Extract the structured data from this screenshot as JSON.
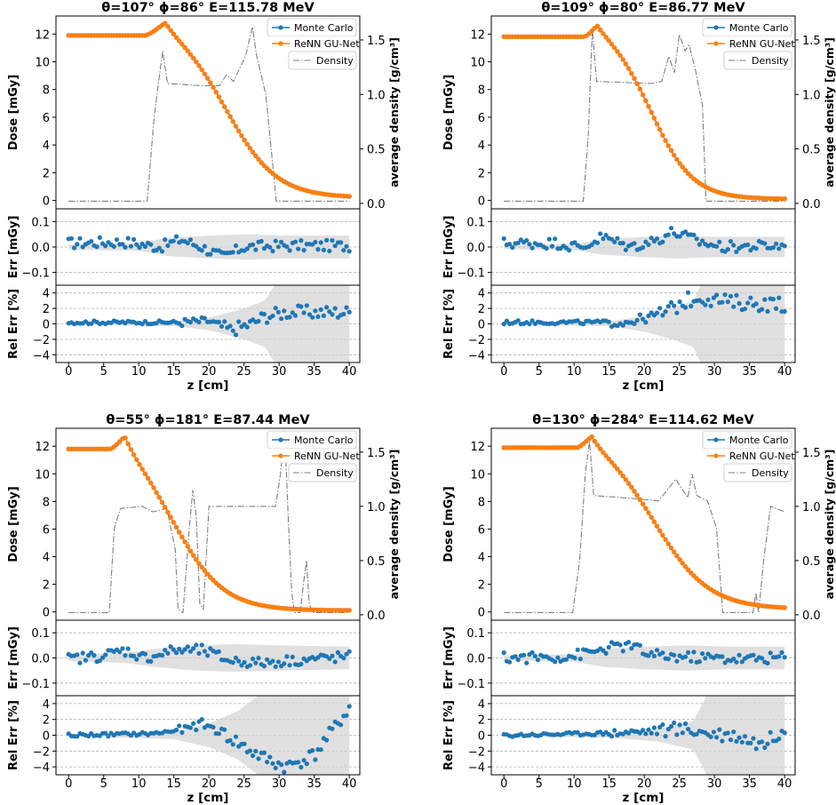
{
  "chart_data": [
    {
      "type": "line",
      "title": "θ=107°   ϕ=86°   E=115.78 MeV",
      "xlabel": "z [cm]",
      "ylabel_dose": "Dose [mGy]",
      "ylabel_density": "average density [g/cm³]",
      "ylabel_err": "Err [mGy]",
      "ylabel_rel": "Rel Err [%]",
      "legend": [
        "Monte Carlo",
        "ReNN GU-Net",
        "Density"
      ],
      "dose_ylim": [
        -0.6,
        13.3
      ],
      "dose_yticks": [
        "0",
        "2",
        "4",
        "6",
        "8",
        "10",
        "12"
      ],
      "density_ylim": [
        -0.05,
        1.72
      ],
      "density_yticks": [
        "0.0",
        "0.5",
        "1.0",
        "1.5"
      ],
      "err_ylim": [
        -0.15,
        0.15
      ],
      "err_yticks": [
        "−0.1",
        "0.0",
        "0.1"
      ],
      "rel_ylim": [
        -5,
        5
      ],
      "rel_yticks": [
        "−4",
        "−2",
        "0",
        "2",
        "4"
      ],
      "xlim": [
        -1.8,
        41.5
      ],
      "xticks": [
        "0",
        "5",
        "10",
        "15",
        "20",
        "25",
        "30",
        "35",
        "40"
      ],
      "dose_profile": {
        "plateau": 11.9,
        "plateau_end": 11.0,
        "peak_z": 13.8,
        "peak_value": 12.8,
        "fall_center": 22.5,
        "fall_width": 3.6,
        "tail": 0.2
      },
      "density_profile": [
        [
          0,
          0.02
        ],
        [
          11.2,
          0.02
        ],
        [
          12.2,
          0.8
        ],
        [
          13.4,
          1.4
        ],
        [
          14.1,
          1.1
        ],
        [
          19,
          1.08
        ],
        [
          21.5,
          1.08
        ],
        [
          22.5,
          1.18
        ],
        [
          23.5,
          1.12
        ],
        [
          25.2,
          1.35
        ],
        [
          26.2,
          1.62
        ],
        [
          26.8,
          1.35
        ],
        [
          27.3,
          1.22
        ],
        [
          28.1,
          1.0
        ],
        [
          29.6,
          0.02
        ],
        [
          40,
          0.02
        ]
      ],
      "err_band": [
        [
          0,
          0.01
        ],
        [
          10,
          0.015
        ],
        [
          14,
          0.035
        ],
        [
          20,
          0.045
        ],
        [
          26,
          0.05
        ],
        [
          30,
          0.045
        ],
        [
          40,
          0.045
        ]
      ],
      "err_scatter": {
        "bias": [
          [
            0,
            0.015
          ],
          [
            8,
            0.02
          ],
          [
            13,
            0.0
          ],
          [
            16,
            0.03
          ],
          [
            19,
            0.0
          ],
          [
            22,
            -0.04
          ],
          [
            25,
            0.0
          ],
          [
            30,
            0.005
          ],
          [
            40,
            0.005
          ]
        ],
        "noise": 0.022
      },
      "rel_band": [
        [
          0,
          0.1
        ],
        [
          15,
          0.3
        ],
        [
          20,
          0.8
        ],
        [
          25,
          2.0
        ],
        [
          28,
          3.0
        ],
        [
          30,
          6.0
        ],
        [
          40,
          6.0
        ]
      ],
      "rel_scatter": {
        "bias": [
          [
            0,
            0.2
          ],
          [
            16,
            0.2
          ],
          [
            20,
            0.4
          ],
          [
            23,
            -0.8
          ],
          [
            26,
            0.0
          ],
          [
            28,
            1.0
          ],
          [
            31,
            1.5
          ],
          [
            40,
            1.5
          ]
        ],
        "noise": 0.9
      }
    },
    {
      "type": "line",
      "title": "θ=109°   ϕ=80°   E=86.77 MeV",
      "xlabel": "z [cm]",
      "ylabel_dose": "Dose [mGy]",
      "ylabel_density": "average density [g/cm³]",
      "ylabel_err": "Err [mGy]",
      "ylabel_rel": "Rel Err [%]",
      "legend": [
        "Monte Carlo",
        "ReNN GU-Net",
        "Density"
      ],
      "dose_ylim": [
        -0.6,
        13.3
      ],
      "dose_yticks": [
        "0",
        "2",
        "4",
        "6",
        "8",
        "10",
        "12"
      ],
      "density_ylim": [
        -0.05,
        1.72
      ],
      "density_yticks": [
        "0.0",
        "0.5",
        "1.0",
        "1.5"
      ],
      "err_ylim": [
        -0.15,
        0.15
      ],
      "err_yticks": [
        "−0.1",
        "0.0",
        "0.1"
      ],
      "rel_ylim": [
        -5,
        5
      ],
      "rel_yticks": [
        "−4",
        "−2",
        "0",
        "2",
        "4"
      ],
      "xlim": [
        -1.8,
        41.5
      ],
      "xticks": [
        "0",
        "5",
        "10",
        "15",
        "20",
        "25",
        "30",
        "35",
        "40"
      ],
      "dose_profile": {
        "plateau": 11.8,
        "plateau_end": 11.5,
        "peak_z": 13.3,
        "peak_value": 12.6,
        "fall_center": 21.0,
        "fall_width": 3.0,
        "tail": 0.1
      },
      "density_profile": [
        [
          0,
          0.02
        ],
        [
          11.3,
          0.02
        ],
        [
          12.0,
          0.6
        ],
        [
          12.6,
          1.6
        ],
        [
          13.2,
          1.12
        ],
        [
          21,
          1.1
        ],
        [
          22.5,
          1.12
        ],
        [
          23.5,
          1.35
        ],
        [
          24.3,
          1.2
        ],
        [
          25.0,
          1.55
        ],
        [
          25.8,
          1.4
        ],
        [
          26.4,
          1.45
        ],
        [
          27.2,
          1.25
        ],
        [
          28.3,
          0.9
        ],
        [
          28.8,
          0.02
        ],
        [
          40,
          0.02
        ]
      ],
      "err_band": [
        [
          0,
          0.008
        ],
        [
          10,
          0.012
        ],
        [
          14,
          0.03
        ],
        [
          20,
          0.04
        ],
        [
          25,
          0.045
        ],
        [
          30,
          0.04
        ],
        [
          40,
          0.04
        ]
      ],
      "err_scatter": {
        "bias": [
          [
            0,
            0.015
          ],
          [
            8,
            0.015
          ],
          [
            11,
            -0.005
          ],
          [
            14,
            0.04
          ],
          [
            18,
            0.0
          ],
          [
            22,
            0.03
          ],
          [
            24,
            0.06
          ],
          [
            28,
            0.02
          ],
          [
            31,
            0.0
          ],
          [
            40,
            0.005
          ]
        ],
        "noise": 0.022
      },
      "rel_band": [
        [
          0,
          0.1
        ],
        [
          15,
          0.3
        ],
        [
          20,
          1.0
        ],
        [
          24,
          2.0
        ],
        [
          27,
          3.0
        ],
        [
          28.5,
          6.0
        ],
        [
          40,
          6.0
        ]
      ],
      "rel_scatter": {
        "bias": [
          [
            0,
            0.2
          ],
          [
            17,
            0.2
          ],
          [
            20,
            0.7
          ],
          [
            23,
            1.5
          ],
          [
            26,
            3.0
          ],
          [
            28,
            3.5
          ],
          [
            32,
            2.8
          ],
          [
            40,
            2.5
          ]
        ],
        "noise": 1.0
      }
    },
    {
      "type": "line",
      "title": "θ=55°   ϕ=181°   E=87.44 MeV",
      "xlabel": "z [cm]",
      "ylabel_dose": "Dose [mGy]",
      "ylabel_density": "average density [g/cm³]",
      "ylabel_err": "Err [mGy]",
      "ylabel_rel": "Rel Err [%]",
      "legend": [
        "Monte Carlo",
        "ReNN GU-Net",
        "Density"
      ],
      "dose_ylim": [
        -0.6,
        13.3
      ],
      "dose_yticks": [
        "0",
        "2",
        "4",
        "6",
        "8",
        "10",
        "12"
      ],
      "density_ylim": [
        -0.05,
        1.72
      ],
      "density_yticks": [
        "0.0",
        "0.5",
        "1.0",
        "1.5"
      ],
      "err_ylim": [
        -0.15,
        0.15
      ],
      "err_yticks": [
        "−0.1",
        "0.0",
        "0.1"
      ],
      "rel_ylim": [
        -5,
        5
      ],
      "rel_yticks": [
        "−4",
        "−2",
        "0",
        "2",
        "4"
      ],
      "xlim": [
        -1.8,
        41.5
      ],
      "xticks": [
        "0",
        "5",
        "10",
        "15",
        "20",
        "25",
        "30",
        "35",
        "40"
      ],
      "dose_profile": {
        "plateau": 11.8,
        "plateau_end": 6.0,
        "peak_z": 8.0,
        "peak_value": 12.7,
        "fall_center": 15.0,
        "fall_width": 3.6,
        "tail": 0.1
      },
      "density_profile": [
        [
          0,
          0.02
        ],
        [
          5.8,
          0.02
        ],
        [
          6.5,
          0.8
        ],
        [
          7.4,
          0.98
        ],
        [
          10.5,
          1.0
        ],
        [
          12,
          0.95
        ],
        [
          14.0,
          0.98
        ],
        [
          15.2,
          0.6
        ],
        [
          15.6,
          0.05
        ],
        [
          16.3,
          0.02
        ],
        [
          17.2,
          0.8
        ],
        [
          17.7,
          1.15
        ],
        [
          18.2,
          0.9
        ],
        [
          18.7,
          0.1
        ],
        [
          19.2,
          0.05
        ],
        [
          20.0,
          1.0
        ],
        [
          23,
          1.0
        ],
        [
          27,
          1.0
        ],
        [
          29.5,
          1.0
        ],
        [
          30.2,
          1.3
        ],
        [
          30.8,
          1.7
        ],
        [
          31.3,
          0.9
        ],
        [
          31.8,
          0.2
        ],
        [
          32.2,
          0.02
        ],
        [
          33.0,
          0.02
        ],
        [
          33.5,
          0.3
        ],
        [
          33.9,
          0.5
        ],
        [
          34.3,
          0.1
        ],
        [
          34.8,
          0.02
        ],
        [
          40,
          0.02
        ]
      ],
      "err_band": [
        [
          0,
          0.012
        ],
        [
          8,
          0.02
        ],
        [
          12,
          0.035
        ],
        [
          18,
          0.05
        ],
        [
          24,
          0.055
        ],
        [
          30,
          0.05
        ],
        [
          40,
          0.045
        ]
      ],
      "err_scatter": {
        "bias": [
          [
            0,
            -0.005
          ],
          [
            5,
            0.01
          ],
          [
            8,
            0.03
          ],
          [
            11,
            0.0
          ],
          [
            15,
            0.03
          ],
          [
            19,
            0.03
          ],
          [
            23,
            -0.01
          ],
          [
            27,
            -0.02
          ],
          [
            32,
            -0.01
          ],
          [
            40,
            0.005
          ]
        ],
        "noise": 0.022
      },
      "rel_band": [
        [
          0,
          0.1
        ],
        [
          15,
          0.5
        ],
        [
          20,
          1.5
        ],
        [
          24,
          3.0
        ],
        [
          27,
          5.0
        ],
        [
          28,
          6.0
        ],
        [
          40,
          6.0
        ]
      ],
      "rel_scatter": {
        "bias": [
          [
            0,
            0.0
          ],
          [
            12,
            0.2
          ],
          [
            17,
            0.8
          ],
          [
            19,
            1.5
          ],
          [
            22,
            0.3
          ],
          [
            25,
            -1.5
          ],
          [
            28,
            -3.0
          ],
          [
            31,
            -4.0
          ],
          [
            35,
            -2.5
          ],
          [
            38,
            1.0
          ],
          [
            40,
            3.5
          ]
        ],
        "noise": 0.9
      }
    },
    {
      "type": "line",
      "title": "θ=130°   ϕ=284°   E=114.62 MeV",
      "xlabel": "z [cm]",
      "ylabel_dose": "Dose [mGy]",
      "ylabel_density": "average density [g/cm³]",
      "ylabel_err": "Err [mGy]",
      "ylabel_rel": "Rel Err [%]",
      "legend": [
        "Monte Carlo",
        "ReNN GU-Net",
        "Density"
      ],
      "dose_ylim": [
        -0.6,
        13.3
      ],
      "dose_yticks": [
        "0",
        "2",
        "4",
        "6",
        "8",
        "10",
        "12"
      ],
      "density_ylim": [
        -0.05,
        1.72
      ],
      "density_yticks": [
        "0.0",
        "0.5",
        "1.0",
        "1.5"
      ],
      "err_ylim": [
        -0.15,
        0.15
      ],
      "err_yticks": [
        "−0.1",
        "0.0",
        "0.1"
      ],
      "rel_ylim": [
        -5,
        5
      ],
      "rel_yticks": [
        "−4",
        "−2",
        "0",
        "2",
        "4"
      ],
      "xlim": [
        -1.8,
        41.5
      ],
      "xticks": [
        "0",
        "5",
        "10",
        "15",
        "20",
        "25",
        "30",
        "35",
        "40"
      ],
      "dose_profile": {
        "plateau": 11.9,
        "plateau_end": 10.5,
        "peak_z": 12.5,
        "peak_value": 12.7,
        "fall_center": 21.5,
        "fall_width": 3.9,
        "tail": 0.2
      },
      "density_profile": [
        [
          0,
          0.02
        ],
        [
          9.8,
          0.02
        ],
        [
          10.8,
          0.5
        ],
        [
          11.6,
          1.3
        ],
        [
          12.2,
          1.6
        ],
        [
          12.8,
          1.1
        ],
        [
          19,
          1.07
        ],
        [
          22,
          1.05
        ],
        [
          24.5,
          1.25
        ],
        [
          25.5,
          1.15
        ],
        [
          26.2,
          1.08
        ],
        [
          26.8,
          1.3
        ],
        [
          27.5,
          1.1
        ],
        [
          29,
          1.05
        ],
        [
          30.3,
          0.8
        ],
        [
          31.2,
          0.02
        ],
        [
          35.5,
          0.02
        ],
        [
          35.9,
          0.2
        ],
        [
          36.3,
          0.02
        ],
        [
          37.0,
          0.5
        ],
        [
          38.0,
          1.0
        ],
        [
          40.0,
          0.95
        ]
      ],
      "err_band": [
        [
          0,
          0.01
        ],
        [
          10,
          0.015
        ],
        [
          14,
          0.035
        ],
        [
          20,
          0.045
        ],
        [
          26,
          0.05
        ],
        [
          32,
          0.045
        ],
        [
          40,
          0.045
        ]
      ],
      "err_scatter": {
        "bias": [
          [
            0,
            0.0
          ],
          [
            9,
            0.005
          ],
          [
            12,
            0.02
          ],
          [
            15,
            0.04
          ],
          [
            18,
            0.05
          ],
          [
            21,
            0.01
          ],
          [
            25,
            0.005
          ],
          [
            30,
            0.0
          ],
          [
            35,
            -0.005
          ],
          [
            40,
            0.005
          ]
        ],
        "noise": 0.022
      },
      "rel_band": [
        [
          0,
          0.1
        ],
        [
          15,
          0.3
        ],
        [
          22,
          0.8
        ],
        [
          27,
          1.8
        ],
        [
          29.5,
          6.0
        ],
        [
          40,
          6.0
        ]
      ],
      "rel_scatter": {
        "bias": [
          [
            0,
            0.0
          ],
          [
            16,
            0.3
          ],
          [
            22,
            0.6
          ],
          [
            26,
            0.8
          ],
          [
            29,
            0.3
          ],
          [
            33,
            0.0
          ],
          [
            37,
            -1.2
          ],
          [
            40,
            1.0
          ]
        ],
        "noise": 0.9
      }
    }
  ]
}
